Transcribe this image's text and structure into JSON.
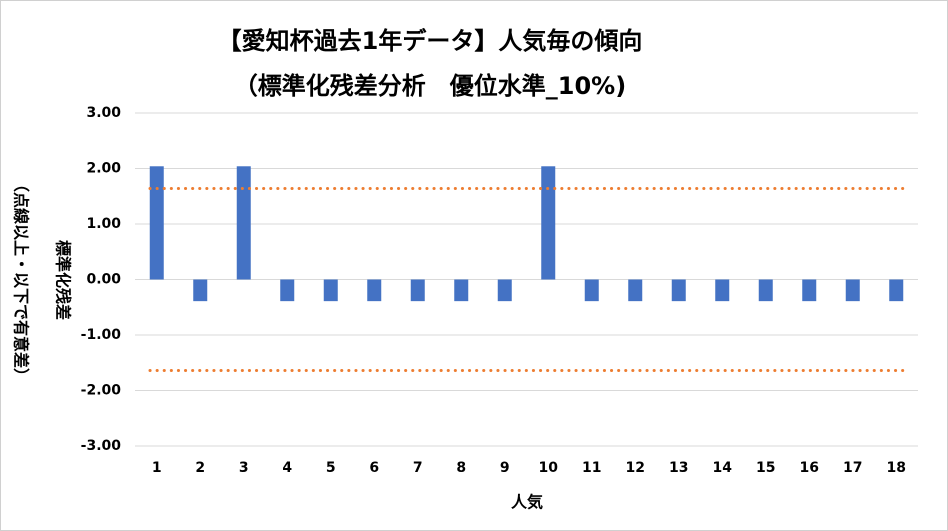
{
  "chart_data": {
    "type": "bar",
    "title": "【愛知杯過去1年データ】人気毎の傾向",
    "subtitle": "（標準化残差分析　優位水準_10%)",
    "x_label": "人気",
    "y_label": [
      "標準化残差",
      "（点線以上・以下で有意差）"
    ],
    "categories": [
      "1",
      "2",
      "3",
      "4",
      "5",
      "6",
      "7",
      "8",
      "9",
      "10",
      "11",
      "12",
      "13",
      "14",
      "15",
      "16",
      "17",
      "18"
    ],
    "values": [
      2.04,
      -0.39,
      2.04,
      -0.39,
      -0.39,
      -0.39,
      -0.39,
      -0.39,
      -0.39,
      2.04,
      -0.39,
      -0.39,
      -0.39,
      -0.39,
      -0.39,
      -0.39,
      -0.39,
      -0.39
    ],
    "color": "#4472c4",
    "ylim": [
      -3,
      3
    ],
    "yticks": [
      {
        "value": -3,
        "label": "-3.00"
      },
      {
        "value": -2,
        "label": "-2.00"
      },
      {
        "value": -1,
        "label": "-1.00"
      },
      {
        "value": 0,
        "label": "0.00"
      },
      {
        "value": 1,
        "label": "1.00"
      },
      {
        "value": 2,
        "label": "2.00"
      },
      {
        "value": 3,
        "label": "3.00"
      }
    ],
    "grid": true,
    "reference_lines": [
      {
        "value": 1.64,
        "color": "#ed7d31"
      },
      {
        "value": -1.64,
        "color": "#ed7d31"
      }
    ]
  }
}
